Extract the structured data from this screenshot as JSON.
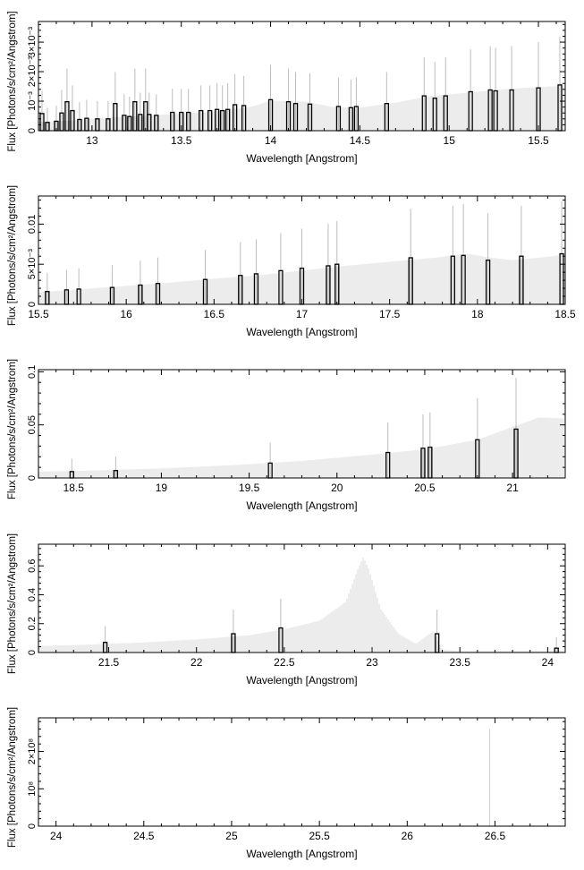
{
  "figure": {
    "panel_ylabel": "Flux [Photons/s/cm²/Angstrom]",
    "panel_xlabel": "Wavelength [Angstrom]"
  },
  "colors": {
    "model_line": "#cfcfcf",
    "data_bin": "#000000",
    "error_bar": "#bdbdbd",
    "axis": "#000000"
  },
  "chart_data": [
    {
      "type": "line",
      "xlabel": "Wavelength [Angstrom]",
      "ylabel": "Flux [Photons/s/cm²/Angstrom]",
      "xlim": [
        12.7,
        15.65
      ],
      "ylim": [
        0,
        0.0037
      ],
      "xticks": [
        13,
        13.5,
        14,
        14.5,
        15,
        15.5
      ],
      "xtick_labels": [
        "13",
        "13.5",
        "14",
        "14.5",
        "15",
        "15.5"
      ],
      "yticks": [
        0,
        0.001,
        0.002,
        0.003
      ],
      "ytick_labels": [
        "0",
        "10⁻³",
        "2×10⁻³",
        "3×10⁻³"
      ],
      "series": [
        {
          "role": "model",
          "x": [
            12.7,
            12.9,
            13.1,
            13.3,
            13.5,
            13.7,
            13.9,
            14.0,
            14.2,
            14.35,
            14.5,
            14.7,
            14.9,
            15.1,
            15.3,
            15.5,
            15.65
          ],
          "y": [
            0.0003,
            0.00035,
            0.00045,
            0.0005,
            0.00058,
            0.00065,
            0.00082,
            0.00102,
            0.00098,
            0.0008,
            0.00078,
            0.00095,
            0.00118,
            0.00128,
            0.0014,
            0.00148,
            0.00152
          ]
        },
        {
          "role": "data_bins",
          "x": [
            12.72,
            12.75,
            12.8,
            12.83,
            12.86,
            12.89,
            12.93,
            12.97,
            13.03,
            13.09,
            13.13,
            13.18,
            13.21,
            13.24,
            13.27,
            13.3,
            13.32,
            13.36,
            13.45,
            13.5,
            13.54,
            13.61,
            13.66,
            13.7,
            13.73,
            13.76,
            13.8,
            13.85,
            14.0,
            14.1,
            14.14,
            14.22,
            14.38,
            14.45,
            14.48,
            14.65,
            14.86,
            14.92,
            14.98,
            15.12,
            15.23,
            15.26,
            15.35,
            15.5,
            15.62
          ],
          "y": [
            0.00058,
            0.00028,
            0.00032,
            0.0006,
            0.00098,
            0.00068,
            0.00038,
            0.00042,
            0.0004,
            0.0004,
            0.00092,
            0.00052,
            0.00048,
            0.00098,
            0.00055,
            0.00098,
            0.00055,
            0.00052,
            0.00062,
            0.00062,
            0.00062,
            0.00068,
            0.00068,
            0.00072,
            0.00068,
            0.00072,
            0.00088,
            0.00085,
            0.00105,
            0.00098,
            0.00092,
            0.0009,
            0.00082,
            0.00078,
            0.00082,
            0.00092,
            0.00118,
            0.0011,
            0.00118,
            0.00132,
            0.00138,
            0.00135,
            0.00138,
            0.00145,
            0.00155
          ]
        }
      ]
    },
    {
      "type": "line",
      "xlabel": "Wavelength [Angstrom]",
      "ylabel": "Flux [Photons/s/cm²/Angstrom]",
      "xlim": [
        15.5,
        18.5
      ],
      "ylim": [
        0,
        0.0135
      ],
      "xticks": [
        15.5,
        16,
        16.5,
        17,
        17.5,
        18,
        18.5
      ],
      "xtick_labels": [
        "15.5",
        "16",
        "16.5",
        "17",
        "17.5",
        "18",
        "18.5"
      ],
      "yticks": [
        0,
        0.005,
        0.01
      ],
      "ytick_labels": [
        "0",
        "5×10⁻³",
        "0.01"
      ],
      "series": [
        {
          "role": "model",
          "x": [
            15.5,
            15.75,
            16.0,
            16.25,
            16.5,
            16.75,
            17.0,
            17.25,
            17.5,
            17.75,
            17.95,
            18.05,
            18.2,
            18.35,
            18.5
          ],
          "y": [
            0.0015,
            0.0019,
            0.0023,
            0.0027,
            0.0032,
            0.0036,
            0.0042,
            0.0048,
            0.0053,
            0.0058,
            0.0063,
            0.0059,
            0.0055,
            0.0058,
            0.0062
          ]
        },
        {
          "role": "data_bins",
          "x": [
            15.55,
            15.66,
            15.73,
            15.92,
            16.08,
            16.18,
            16.45,
            16.65,
            16.74,
            16.88,
            17.0,
            17.15,
            17.2,
            17.62,
            17.86,
            17.92,
            18.06,
            18.25,
            18.48
          ],
          "y": [
            0.0016,
            0.0018,
            0.0019,
            0.0021,
            0.0024,
            0.0026,
            0.0031,
            0.0036,
            0.0038,
            0.0042,
            0.0045,
            0.0048,
            0.005,
            0.0058,
            0.006,
            0.0061,
            0.0055,
            0.006,
            0.0063
          ]
        }
      ]
    },
    {
      "type": "line",
      "xlabel": "Wavelength [Angstrom]",
      "ylabel": "Flux [Photons/s/cm²/Angstrom]",
      "xlim": [
        18.3,
        21.3
      ],
      "ylim": [
        0,
        0.102
      ],
      "xticks": [
        18.5,
        19,
        19.5,
        20,
        20.5,
        21
      ],
      "xtick_labels": [
        "18.5",
        "19",
        "19.5",
        "20",
        "20.5",
        "21"
      ],
      "yticks": [
        0,
        0.05,
        0.1
      ],
      "ytick_labels": [
        "0",
        "0.05",
        "0.1"
      ],
      "series": [
        {
          "role": "model",
          "x": [
            18.3,
            18.6,
            19.0,
            19.4,
            19.8,
            20.2,
            20.5,
            20.8,
            21.0,
            21.15,
            21.3
          ],
          "y": [
            0.006,
            0.007,
            0.009,
            0.012,
            0.016,
            0.022,
            0.027,
            0.036,
            0.048,
            0.057,
            0.056
          ]
        },
        {
          "role": "data_bins",
          "x": [
            18.49,
            18.74,
            19.62,
            20.29,
            20.49,
            20.53,
            20.8,
            21.02
          ],
          "y": [
            0.006,
            0.007,
            0.014,
            0.024,
            0.028,
            0.029,
            0.036,
            0.046
          ]
        }
      ]
    },
    {
      "type": "line",
      "xlabel": "Wavelength [Angstrom]",
      "ylabel": "Flux [Photons/s/cm²/Angstrom]",
      "xlim": [
        21.1,
        24.1
      ],
      "ylim": [
        0,
        0.75
      ],
      "xticks": [
        21.5,
        22,
        22.5,
        23,
        23.5,
        24
      ],
      "xtick_labels": [
        "21.5",
        "22",
        "22.5",
        "23",
        "23.5",
        "24"
      ],
      "yticks": [
        0,
        0.2,
        0.4,
        0.6
      ],
      "ytick_labels": [
        "0",
        "0.2",
        "0.4",
        "0.6"
      ],
      "series": [
        {
          "role": "model",
          "x": [
            21.1,
            21.4,
            21.7,
            22.0,
            22.3,
            22.5,
            22.7,
            22.85,
            22.92,
            22.95,
            22.98,
            23.05,
            23.15,
            23.25,
            23.35,
            23.4,
            23.5,
            24.0,
            24.1
          ],
          "y": [
            0.045,
            0.055,
            0.07,
            0.09,
            0.12,
            0.16,
            0.22,
            0.35,
            0.58,
            0.66,
            0.58,
            0.3,
            0.13,
            0.06,
            0.15,
            0.02,
            0.01,
            0.01,
            0.01
          ]
        },
        {
          "role": "data_bins",
          "x": [
            21.48,
            22.21,
            22.48,
            23.37,
            24.05
          ],
          "y": [
            0.07,
            0.13,
            0.17,
            0.13,
            0.03
          ]
        }
      ]
    },
    {
      "type": "line",
      "xlabel": "Wavelength [Angstrom]",
      "ylabel": "Flux [Photons/s/cm²/Angstrom]",
      "xlim": [
        23.9,
        26.9
      ],
      "ylim": [
        0,
        290000000.0
      ],
      "xticks": [
        24,
        24.5,
        25,
        25.5,
        26,
        26.5
      ],
      "xtick_labels": [
        "24",
        "24.5",
        "25",
        "25.5",
        "26",
        "26.5"
      ],
      "yticks": [
        0,
        100000000.0,
        200000000.0
      ],
      "ytick_labels": [
        "0",
        "10⁸",
        "2×10⁸"
      ],
      "series": [
        {
          "role": "model",
          "x": [
            23.9,
            26.47,
            26.47,
            26.48,
            26.9
          ],
          "y": [
            0,
            0,
            260000000.0,
            0,
            0
          ]
        }
      ]
    }
  ]
}
